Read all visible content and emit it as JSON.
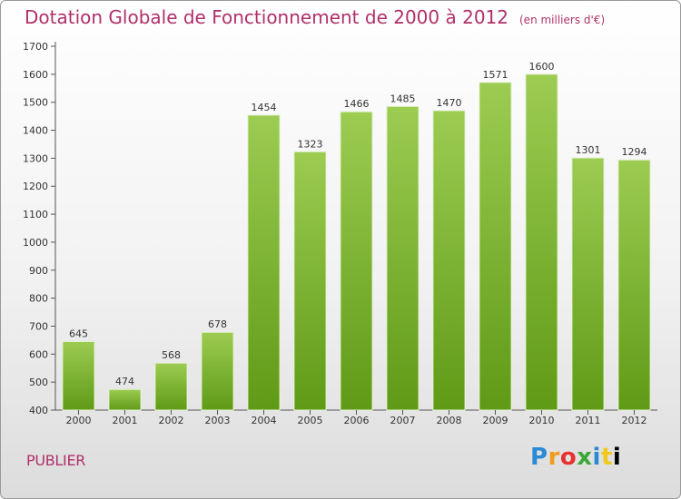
{
  "header": {
    "title": "Dotation Globale de Fonctionnement de 2000 à 2012",
    "unit": "(en milliers d'€)"
  },
  "footer": {
    "town": "PUBLIER",
    "logo_letters": [
      "P",
      "r",
      "o",
      "x",
      "i",
      "t",
      "i"
    ]
  },
  "colors": {
    "title": "#b0306a",
    "bar_light": "#9ccc52",
    "bar_dark": "#5f9a16"
  },
  "chart_data": {
    "type": "bar",
    "title": "Dotation Globale de Fonctionnement de 2000 à 2012",
    "subtitle": "(en milliers d'€)",
    "categories": [
      "2000",
      "2001",
      "2002",
      "2003",
      "2004",
      "2005",
      "2006",
      "2007",
      "2008",
      "2009",
      "2010",
      "2011",
      "2012"
    ],
    "values": [
      645,
      474,
      568,
      678,
      1454,
      1323,
      1466,
      1485,
      1470,
      1571,
      1600,
      1301,
      1294
    ],
    "ylim": [
      400,
      1700
    ],
    "yticks": [
      400,
      500,
      600,
      700,
      800,
      900,
      1000,
      1100,
      1200,
      1300,
      1400,
      1500,
      1600,
      1700
    ],
    "grid": false,
    "legend": "none"
  }
}
